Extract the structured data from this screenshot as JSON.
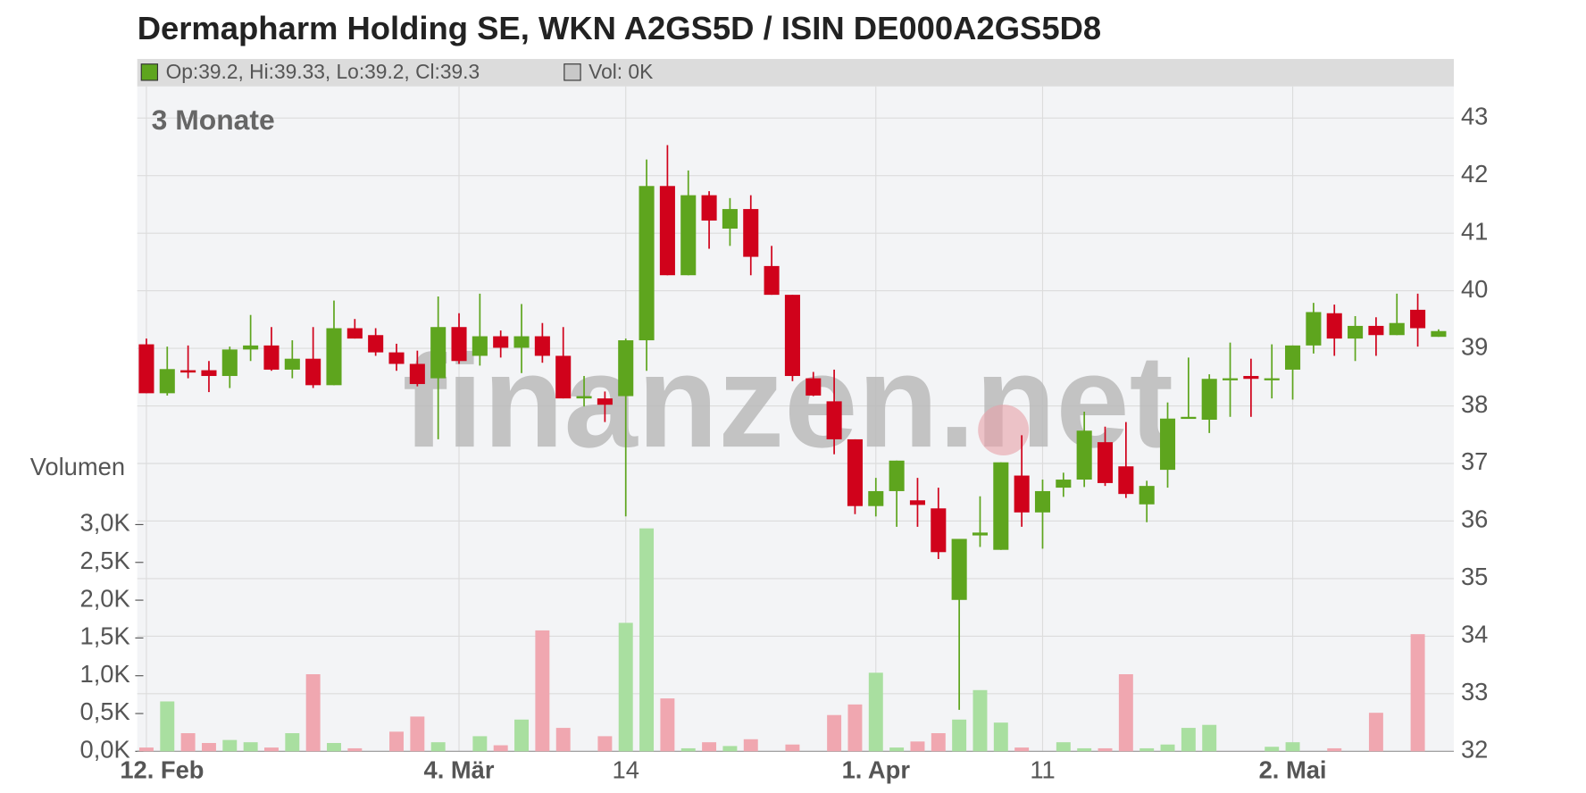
{
  "chart_data": {
    "type": "candlestick",
    "title": "Dermapharm Holding SE, WKN A2GS5D / ISIN DE000A2GS5D8",
    "info_text": "Op:39.2, Hi:39.33, Lo:39.2, Cl:39.3",
    "volume_info_text": "Vol: 0K",
    "period_label": "3 Monate",
    "volume_axis_label": "Volumen",
    "watermark": "finanzen.net",
    "categories": [
      "12. Feb",
      null,
      null,
      null,
      null,
      null,
      null,
      null,
      null,
      null,
      null,
      null,
      null,
      null,
      null,
      "4. Mär",
      null,
      null,
      null,
      null,
      null,
      null,
      null,
      "14",
      null,
      null,
      null,
      null,
      null,
      null,
      null,
      null,
      null,
      null,
      null,
      "1. Apr",
      null,
      null,
      null,
      null,
      null,
      null,
      null,
      "11",
      null,
      null,
      null,
      null,
      null,
      null,
      null,
      null,
      null,
      null,
      null,
      "2. Mai",
      null,
      null,
      null,
      null,
      null,
      null,
      null
    ],
    "open": [
      39.07,
      38.22,
      38.62,
      38.62,
      38.52,
      38.98,
      39.05,
      38.63,
      38.82,
      38.36,
      39.35,
      39.23,
      38.93,
      38.73,
      38.48,
      39.37,
      38.87,
      39.21,
      39.01,
      39.21,
      38.87,
      38.13,
      38.13,
      38.17,
      39.14,
      41.82,
      40.27,
      41.66,
      41.08,
      41.42,
      40.43,
      39.93,
      38.48,
      38.08,
      37.42,
      36.26,
      36.52,
      36.36,
      36.22,
      34.63,
      35.75,
      35.5,
      36.79,
      36.15,
      36.58,
      36.72,
      37.37,
      36.95,
      36.29,
      36.89,
      37.78,
      37.76,
      38.47,
      38.52,
      38.47,
      38.63,
      39.05,
      39.61,
      39.17,
      39.39,
      39.23,
      39.67,
      39.2
    ],
    "high": [
      39.17,
      39.03,
      39.05,
      38.78,
      39.03,
      39.58,
      39.37,
      39.14,
      39.37,
      39.83,
      39.51,
      39.35,
      39.08,
      38.96,
      39.9,
      39.61,
      39.95,
      39.31,
      39.77,
      39.44,
      39.37,
      38.52,
      38.25,
      39.17,
      42.28,
      42.53,
      42.09,
      41.73,
      41.61,
      41.66,
      40.78,
      39.93,
      38.59,
      38.63,
      37.42,
      36.75,
      37.05,
      36.75,
      36.58,
      35.69,
      36.43,
      37.02,
      37.49,
      36.72,
      36.84,
      37.9,
      37.64,
      37.72,
      36.7,
      38.06,
      38.84,
      38.55,
      39.1,
      38.82,
      39.07,
      39.05,
      39.79,
      39.76,
      39.56,
      39.54,
      39.95,
      39.95,
      39.33
    ],
    "low": [
      38.22,
      38.18,
      38.48,
      38.24,
      38.31,
      38.78,
      38.61,
      38.48,
      38.31,
      38.36,
      39.17,
      38.87,
      38.61,
      38.34,
      37.42,
      38.73,
      38.7,
      38.84,
      38.57,
      38.75,
      38.13,
      37.99,
      37.72,
      36.08,
      38.61,
      40.27,
      40.27,
      40.73,
      40.78,
      40.27,
      39.93,
      38.43,
      38.17,
      37.16,
      36.12,
      36.08,
      35.9,
      35.9,
      35.34,
      32.72,
      35.55,
      35.5,
      35.9,
      35.52,
      36.42,
      36.59,
      36.61,
      36.4,
      35.98,
      36.58,
      37.78,
      37.53,
      37.81,
      37.81,
      38.13,
      38.11,
      38.91,
      38.87,
      38.78,
      38.87,
      39.23,
      39.03,
      39.2
    ],
    "close": [
      38.22,
      38.64,
      38.58,
      38.52,
      38.98,
      39.05,
      38.63,
      38.82,
      38.36,
      39.35,
      39.17,
      38.93,
      38.73,
      38.38,
      39.37,
      38.78,
      39.21,
      39.01,
      39.21,
      38.87,
      38.13,
      38.17,
      38.02,
      39.14,
      41.82,
      40.27,
      41.66,
      41.22,
      41.42,
      40.59,
      39.93,
      38.52,
      38.18,
      37.42,
      36.26,
      36.52,
      37.05,
      36.28,
      35.46,
      35.69,
      35.8,
      37.02,
      36.15,
      36.52,
      36.72,
      37.57,
      36.66,
      36.47,
      36.61,
      37.78,
      37.81,
      38.47,
      38.48,
      38.47,
      38.48,
      39.05,
      39.63,
      39.17,
      39.39,
      39.23,
      39.44,
      39.35,
      39.3
    ],
    "volume": [
      0.05,
      0.66,
      0.24,
      0.11,
      0.15,
      0.12,
      0.05,
      0.24,
      1.02,
      0.11,
      0.04,
      0,
      0.26,
      0.46,
      0.12,
      0,
      0.2,
      0.08,
      0.42,
      1.6,
      0.31,
      0,
      0.2,
      1.7,
      2.95,
      0.7,
      0.04,
      0.12,
      0.07,
      0.16,
      0,
      0.09,
      0,
      0.48,
      0.62,
      1.04,
      0.05,
      0.13,
      0.24,
      0.42,
      0.81,
      0.38,
      0.05,
      0,
      0.12,
      0.04,
      0.04,
      1.02,
      0.04,
      0.09,
      0.31,
      0.35,
      0,
      0,
      0.06,
      0.12,
      0,
      0.04,
      0,
      0.51,
      0,
      1.55,
      0
    ],
    "up_color": "#5ea51e",
    "down_color": "#d0021b",
    "volume_up_color": "#a9dfa0",
    "volume_down_color": "#f0a7b0",
    "ylim": [
      32,
      43.55
    ],
    "yticks": [
      32,
      33,
      34,
      35,
      36,
      37,
      38,
      39,
      40,
      41,
      42,
      43
    ],
    "y2lim": [
      0,
      3.0
    ],
    "y2ticks": [
      {
        "value": 0,
        "label": "0,0K"
      },
      {
        "value": 0.5,
        "label": "0,5K"
      },
      {
        "value": 1.0,
        "label": "1,0K"
      },
      {
        "value": 1.5,
        "label": "1,5K"
      },
      {
        "value": 2.0,
        "label": "2,0K"
      },
      {
        "value": 2.5,
        "label": "2,5K"
      },
      {
        "value": 3.0,
        "label": "3,0K"
      }
    ],
    "grid": true
  }
}
